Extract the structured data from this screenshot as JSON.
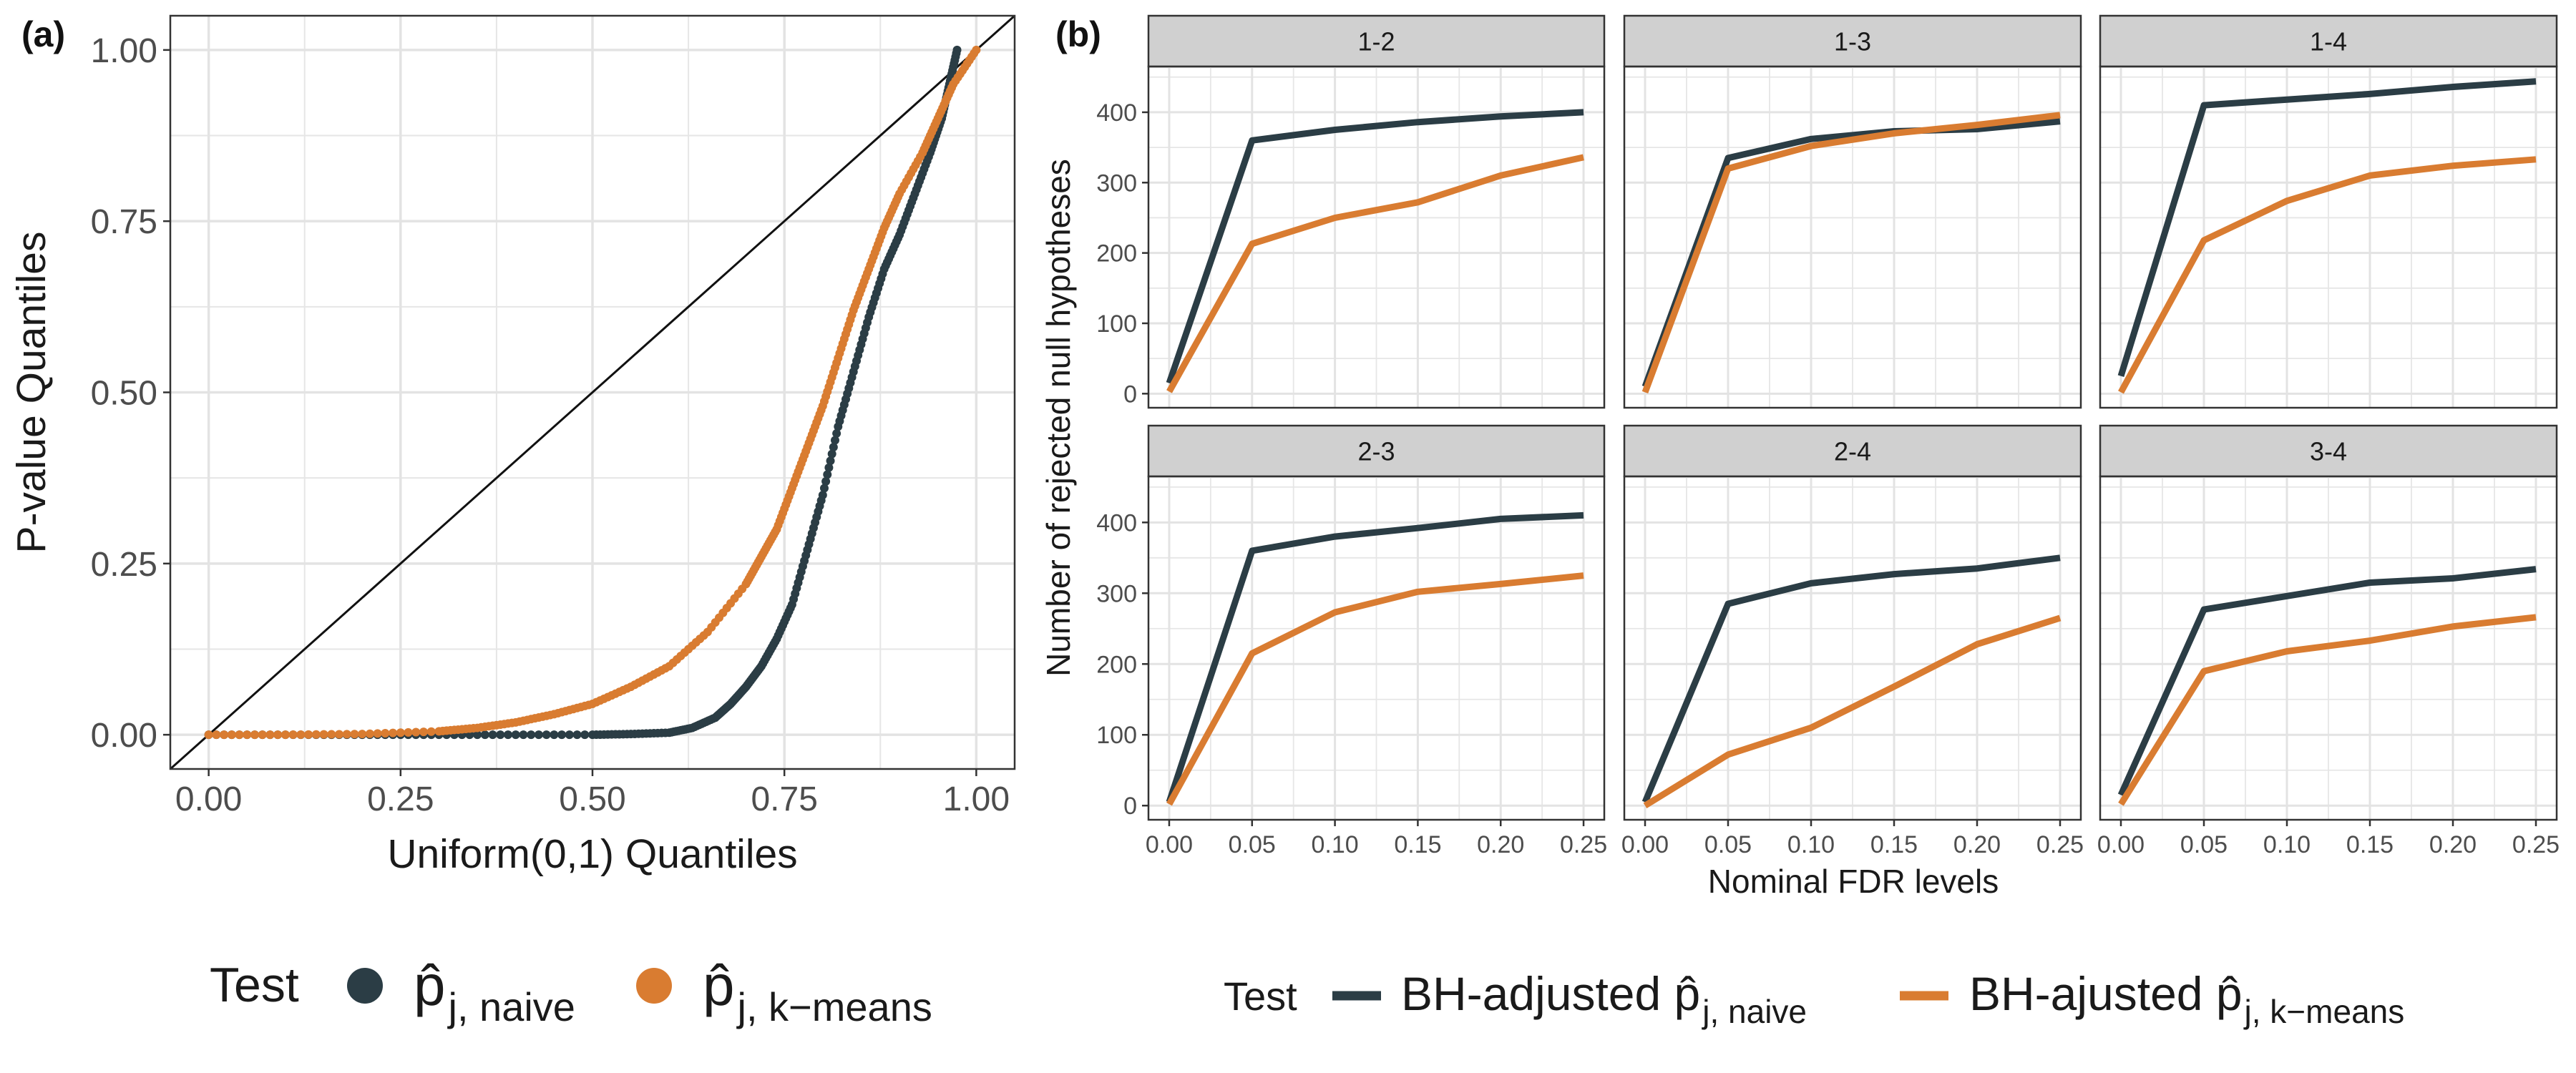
{
  "colors": {
    "naive": "#2b3d45",
    "kmeans": "#d97c31",
    "strip": "#d0d0d0",
    "grid": "#e6e6e6",
    "axis_text": "#4d4d4d"
  },
  "chart_data": [
    {
      "type": "scatter",
      "panel_tag": "(a)",
      "xlabel": "Uniform(0,1) Quantiles",
      "ylabel": "P-value Quantiles",
      "xlim": [
        -0.05,
        1.05
      ],
      "ylim": [
        -0.05,
        1.05
      ],
      "x_ticks": [
        0,
        0.25,
        0.5,
        0.75,
        1.0
      ],
      "y_ticks": [
        0,
        0.25,
        0.5,
        0.75,
        1.0
      ],
      "x_tick_labels": [
        "0.00",
        "0.25",
        "0.50",
        "0.75",
        "1.00"
      ],
      "y_tick_labels": [
        "0.00",
        "0.25",
        "0.50",
        "0.75",
        "1.00"
      ],
      "reference_line": "y = x",
      "legend": {
        "title": "Test",
        "entries": [
          {
            "series": "naive",
            "label": "p̂",
            "sub": "j, naive"
          },
          {
            "series": "kmeans",
            "label": "p̂",
            "sub": "j, k−means"
          }
        ]
      },
      "series": [
        {
          "name": "naive",
          "points": [
            [
              0,
              0
            ],
            [
              0.1,
              0
            ],
            [
              0.2,
              0
            ],
            [
              0.3,
              0
            ],
            [
              0.4,
              0
            ],
            [
              0.5,
              0
            ],
            [
              0.55,
              0.001
            ],
            [
              0.6,
              0.003
            ],
            [
              0.63,
              0.01
            ],
            [
              0.66,
              0.025
            ],
            [
              0.68,
              0.045
            ],
            [
              0.7,
              0.07
            ],
            [
              0.72,
              0.1
            ],
            [
              0.74,
              0.14
            ],
            [
              0.76,
              0.19
            ],
            [
              0.78,
              0.27
            ],
            [
              0.8,
              0.35
            ],
            [
              0.82,
              0.45
            ],
            [
              0.84,
              0.53
            ],
            [
              0.86,
              0.61
            ],
            [
              0.88,
              0.68
            ],
            [
              0.9,
              0.73
            ],
            [
              0.92,
              0.79
            ],
            [
              0.94,
              0.85
            ],
            [
              0.955,
              0.9
            ],
            [
              0.965,
              0.95
            ],
            [
              0.975,
              1.0
            ]
          ]
        },
        {
          "name": "kmeans",
          "points": [
            [
              0,
              0
            ],
            [
              0.1,
              0
            ],
            [
              0.2,
              0.001
            ],
            [
              0.3,
              0.005
            ],
            [
              0.35,
              0.01
            ],
            [
              0.4,
              0.018
            ],
            [
              0.45,
              0.03
            ],
            [
              0.5,
              0.045
            ],
            [
              0.55,
              0.07
            ],
            [
              0.6,
              0.1
            ],
            [
              0.65,
              0.15
            ],
            [
              0.7,
              0.22
            ],
            [
              0.72,
              0.26
            ],
            [
              0.74,
              0.3
            ],
            [
              0.76,
              0.36
            ],
            [
              0.78,
              0.42
            ],
            [
              0.8,
              0.48
            ],
            [
              0.82,
              0.55
            ],
            [
              0.84,
              0.62
            ],
            [
              0.86,
              0.68
            ],
            [
              0.88,
              0.74
            ],
            [
              0.9,
              0.79
            ],
            [
              0.93,
              0.85
            ],
            [
              0.95,
              0.9
            ],
            [
              0.97,
              0.95
            ],
            [
              1.0,
              1.0
            ]
          ]
        }
      ]
    },
    {
      "type": "line",
      "panel_tag": "(b)",
      "xlabel": "Nominal FDR levels",
      "ylabel": "Number of rejected null hypotheses",
      "x": [
        0,
        0.05,
        0.1,
        0.15,
        0.2,
        0.25
      ],
      "x_tick_labels": [
        "0.00",
        "0.05",
        "0.10",
        "0.15",
        "0.20",
        "0.25"
      ],
      "y_ticks": [
        0,
        100,
        200,
        300,
        400
      ],
      "y_tick_labels": [
        "0",
        "100",
        "200",
        "300",
        "400"
      ],
      "ylim": [
        -20,
        465
      ],
      "legend": {
        "title": "Test",
        "entries": [
          {
            "series": "naive",
            "label": "BH-adjusted p̂",
            "sub": "j, naive"
          },
          {
            "series": "kmeans",
            "label": "BH-ajusted p̂",
            "sub": "j, k−means"
          }
        ]
      },
      "facets": [
        {
          "label": "1-2",
          "naive": [
            15,
            360,
            375,
            386,
            394,
            400
          ],
          "kmeans": [
            3,
            213,
            250,
            272,
            310,
            336
          ]
        },
        {
          "label": "1-3",
          "naive": [
            10,
            335,
            362,
            373,
            376,
            387
          ],
          "kmeans": [
            2,
            320,
            352,
            370,
            382,
            396
          ]
        },
        {
          "label": "1-4",
          "naive": [
            25,
            410,
            418,
            426,
            436,
            444
          ],
          "kmeans": [
            2,
            218,
            274,
            310,
            324,
            333
          ]
        },
        {
          "label": "2-3",
          "naive": [
            5,
            360,
            380,
            392,
            405,
            410
          ],
          "kmeans": [
            2,
            215,
            273,
            302,
            313,
            325
          ]
        },
        {
          "label": "2-4",
          "naive": [
            5,
            285,
            314,
            327,
            335,
            350
          ],
          "kmeans": [
            0,
            72,
            110,
            168,
            228,
            265
          ]
        },
        {
          "label": "3-4",
          "naive": [
            15,
            277,
            296,
            315,
            321,
            334
          ],
          "kmeans": [
            2,
            190,
            218,
            233,
            253,
            266
          ]
        }
      ]
    }
  ]
}
